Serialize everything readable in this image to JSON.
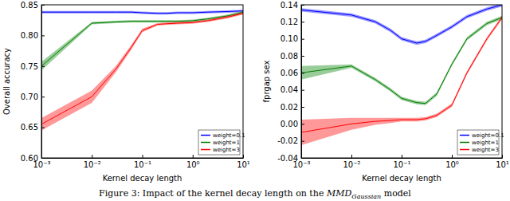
{
  "chart_data": [
    {
      "type": "line",
      "x_label": "Kernel decay length",
      "y_label": "Overall accuracy",
      "log": "x",
      "grid": false,
      "legend": "lower right",
      "x": [
        0.001,
        0.01,
        0.03,
        0.06,
        0.1,
        0.2,
        0.3,
        0.5,
        1,
        2,
        5,
        10
      ],
      "xlim": [
        0.001,
        10
      ],
      "xticks": [
        {
          "value": 0.001,
          "label": "10⁻³"
        },
        {
          "value": 0.01,
          "label": "10⁻²"
        },
        {
          "value": 0.1,
          "label": "10⁻¹"
        },
        {
          "value": 1,
          "label": "10⁰"
        },
        {
          "value": 10,
          "label": "10¹"
        }
      ],
      "ylim": [
        0.6,
        0.85
      ],
      "yticks": [
        {
          "value": 0.6,
          "label": "0.60"
        },
        {
          "value": 0.65,
          "label": "0.65"
        },
        {
          "value": 0.7,
          "label": "0.70"
        },
        {
          "value": 0.75,
          "label": "0.75"
        },
        {
          "value": 0.8,
          "label": "0.80"
        },
        {
          "value": 0.85,
          "label": "0.85"
        }
      ],
      "series": [
        {
          "name": "weight=0.1",
          "color": "#0000ff",
          "values": [
            0.838,
            0.838,
            0.838,
            0.838,
            0.837,
            0.836,
            0.836,
            0.837,
            0.837,
            0.838,
            0.839,
            0.84
          ],
          "errors": [
            0.002,
            0.002,
            0.002,
            0.002,
            0.002,
            0.002,
            0.002,
            0.002,
            0.002,
            0.002,
            0.002,
            0.002
          ]
        },
        {
          "name": "weight=1",
          "color": "#008000",
          "values": [
            0.75,
            0.82,
            0.822,
            0.823,
            0.823,
            0.823,
            0.823,
            0.823,
            0.824,
            0.827,
            0.832,
            0.838
          ],
          "errors": [
            0.007,
            0.002,
            0.002,
            0.002,
            0.002,
            0.002,
            0.002,
            0.002,
            0.002,
            0.002,
            0.002,
            0.002
          ]
        },
        {
          "name": "weight=3",
          "color": "#ff0000",
          "values": [
            0.655,
            0.7,
            0.745,
            0.78,
            0.808,
            0.818,
            0.819,
            0.82,
            0.821,
            0.824,
            0.83,
            0.836
          ],
          "errors": [
            0.01,
            0.01,
            0.005,
            0.004,
            0.003,
            0.002,
            0.002,
            0.002,
            0.002,
            0.002,
            0.002,
            0.002
          ]
        }
      ]
    },
    {
      "type": "line",
      "x_label": "Kernel decay length",
      "y_label": "fprgap sex",
      "log": "x",
      "grid": false,
      "legend": "lower right",
      "x": [
        0.001,
        0.01,
        0.03,
        0.06,
        0.1,
        0.2,
        0.3,
        0.5,
        1,
        2,
        5,
        10
      ],
      "xlim": [
        0.001,
        10
      ],
      "xticks": [
        {
          "value": 0.001,
          "label": "10⁻³"
        },
        {
          "value": 0.01,
          "label": "10⁻²"
        },
        {
          "value": 0.1,
          "label": "10⁻¹"
        },
        {
          "value": 1,
          "label": "10⁰"
        },
        {
          "value": 10,
          "label": "10¹"
        }
      ],
      "ylim": [
        -0.04,
        0.14
      ],
      "yticks": [
        {
          "value": -0.04,
          "label": "-0.04"
        },
        {
          "value": -0.02,
          "label": "-0.02"
        },
        {
          "value": 0,
          "label": "0.00"
        },
        {
          "value": 0.02,
          "label": "0.02"
        },
        {
          "value": 0.04,
          "label": "0.04"
        },
        {
          "value": 0.06,
          "label": "0.06"
        },
        {
          "value": 0.08,
          "label": "0.08"
        },
        {
          "value": 0.1,
          "label": "0.10"
        },
        {
          "value": 0.12,
          "label": "0.12"
        },
        {
          "value": 0.14,
          "label": "0.14"
        }
      ],
      "series": [
        {
          "name": "weight=0.1",
          "color": "#0000ff",
          "values": [
            0.134,
            0.128,
            0.12,
            0.11,
            0.1,
            0.095,
            0.097,
            0.104,
            0.114,
            0.126,
            0.135,
            0.14
          ],
          "errors": [
            0.002,
            0.002,
            0.002,
            0.002,
            0.002,
            0.002,
            0.002,
            0.002,
            0.002,
            0.002,
            0.002,
            0.002
          ]
        },
        {
          "name": "weight=1",
          "color": "#008000",
          "values": [
            0.06,
            0.068,
            0.052,
            0.04,
            0.03,
            0.025,
            0.024,
            0.035,
            0.07,
            0.1,
            0.118,
            0.125
          ],
          "errors": [
            0.008,
            0.002,
            0.002,
            0.002,
            0.002,
            0.002,
            0.002,
            0.002,
            0.002,
            0.002,
            0.002,
            0.002
          ]
        },
        {
          "name": "weight=3",
          "color": "#ff0000",
          "values": [
            -0.01,
            0,
            0.003,
            0.004,
            0.005,
            0.005,
            0.006,
            0.01,
            0.022,
            0.06,
            0.1,
            0.125
          ],
          "errors": [
            0.015,
            0.007,
            0.004,
            0.003,
            0.002,
            0.002,
            0.002,
            0.002,
            0.002,
            0.002,
            0.002,
            0.002
          ]
        }
      ]
    }
  ],
  "caption": {
    "prefix": "Figure 3: Impact of the kernel decay length on the ",
    "math": "MMD",
    "subscript": "Gaussian",
    "suffix": " model"
  }
}
